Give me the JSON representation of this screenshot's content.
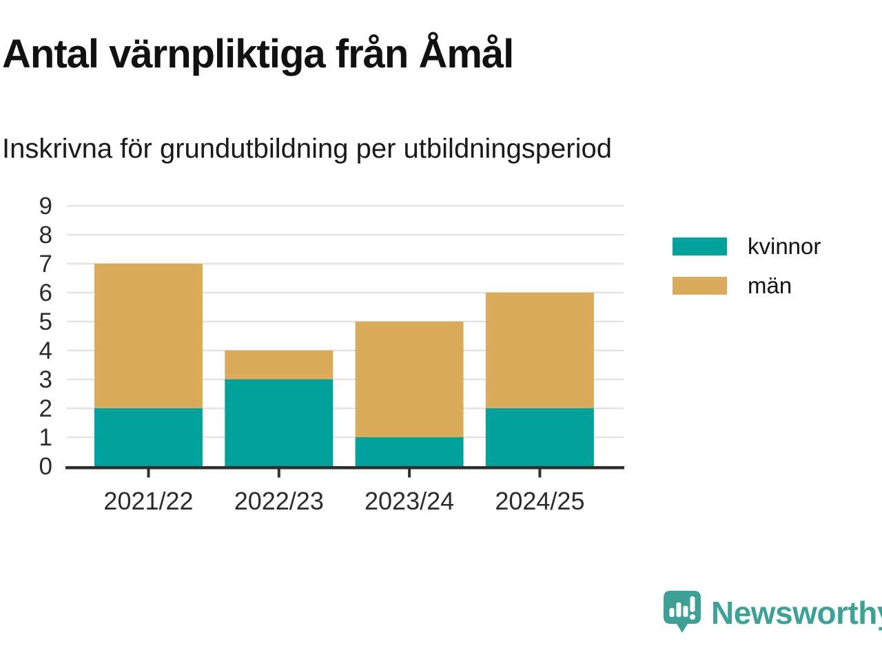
{
  "header": {
    "title": "Antal värnpliktiga från Åmål",
    "subtitle": "Inskrivna för grundutbildning per utbildningsperiod"
  },
  "chart_data": {
    "type": "bar",
    "stacked": true,
    "title": "Antal värnpliktiga från Åmål",
    "subtitle": "Inskrivna för grundutbildning per utbildningsperiod",
    "categories": [
      "2021/22",
      "2022/23",
      "2023/24",
      "2024/25"
    ],
    "series": [
      {
        "name": "kvinnor",
        "color": "#00a29b",
        "values": [
          2,
          3,
          1,
          2
        ]
      },
      {
        "name": "män",
        "color": "#d9ab5b",
        "values": [
          5,
          1,
          4,
          4
        ]
      }
    ],
    "xlabel": "",
    "ylabel": "",
    "ylim": [
      0,
      9
    ],
    "yticks": [
      0,
      1,
      2,
      3,
      4,
      5,
      6,
      7,
      8,
      9
    ],
    "grid": "horizontal",
    "legend_position": "right"
  },
  "legend": {
    "items": [
      {
        "label": "kvinnor",
        "color": "#00a29b"
      },
      {
        "label": "män",
        "color": "#d9ab5b"
      }
    ]
  },
  "footer": {
    "brand": "Newsworthy",
    "brand_color": "#3da195",
    "logo_icon": "newsworthy-speech-bubble-bar-chart-icon"
  },
  "colors": {
    "axis": "#2e2e2e",
    "gridline": "#e2e2e2",
    "tick_text": "#2b2b2b",
    "background": "#ffffff"
  }
}
